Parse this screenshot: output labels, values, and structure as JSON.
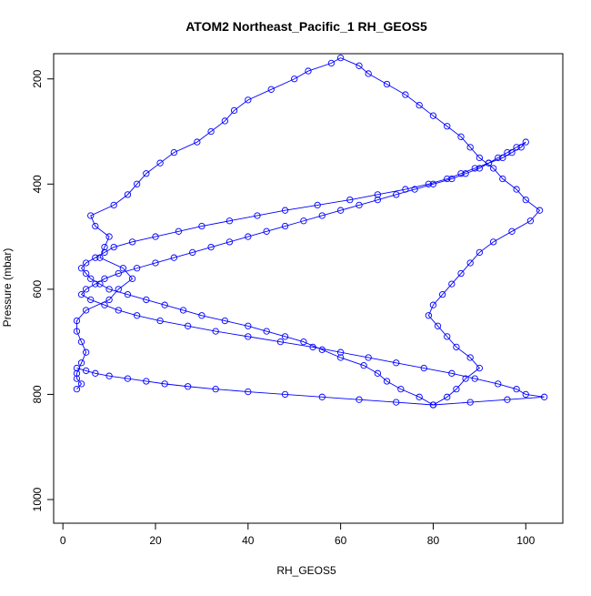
{
  "chart_data": {
    "type": "line",
    "title": "ATOM2 Northeast_Pacific_1 RH_GEOS5",
    "xlabel": "RH_GEOS5",
    "ylabel": "Pressure (mbar)",
    "xlim": [
      -2,
      108
    ],
    "ylim": [
      1045,
      152
    ],
    "y_reversed": true,
    "grid": false,
    "legend": "none",
    "marker": "open-circle",
    "series_color": "#0000ff",
    "x_ticks": [
      0,
      20,
      40,
      60,
      80,
      100
    ],
    "y_ticks": [
      200,
      400,
      600,
      800,
      1000
    ],
    "series": [
      {
        "x": [
          3,
          4,
          3,
          3,
          4,
          5,
          4,
          3,
          3,
          5,
          10,
          12,
          15,
          13,
          8,
          9,
          10,
          7,
          6,
          11,
          14,
          16,
          18,
          21,
          24,
          29,
          32,
          35,
          37,
          40,
          45,
          50,
          53,
          58,
          60,
          64,
          66,
          70,
          74,
          77,
          80,
          83,
          86,
          88,
          90,
          93,
          95,
          98,
          100,
          103,
          101,
          97,
          93,
          90,
          88,
          86,
          84,
          82,
          80,
          79,
          81,
          83,
          85,
          88,
          90,
          87,
          85,
          83,
          80,
          77,
          73,
          70,
          68,
          65,
          60,
          56,
          52,
          48,
          44,
          40,
          35,
          30,
          26,
          22,
          18,
          14,
          10,
          8,
          6,
          5,
          4,
          5,
          7,
          9,
          11,
          15,
          20,
          25,
          30,
          36,
          42,
          48,
          55,
          62,
          68,
          74,
          79,
          83,
          86,
          89,
          92,
          95,
          97,
          99,
          100,
          98,
          96,
          94,
          92,
          90,
          87,
          84,
          80,
          76,
          72,
          68,
          64,
          60,
          56,
          52,
          48,
          44,
          40,
          36,
          32,
          28,
          24,
          20,
          16,
          12,
          9,
          7,
          5,
          4,
          6,
          9,
          12,
          16,
          21,
          27,
          33,
          40,
          47,
          54,
          60,
          66,
          72,
          78,
          84,
          89,
          94,
          98,
          100,
          104,
          96,
          88,
          80,
          72,
          64,
          56,
          48,
          40,
          33,
          27,
          22,
          18,
          14,
          10,
          7,
          5,
          3
        ],
        "y": [
          790,
          780,
          770,
          760,
          740,
          720,
          700,
          680,
          660,
          640,
          620,
          600,
          580,
          560,
          540,
          520,
          500,
          480,
          460,
          440,
          420,
          400,
          380,
          360,
          340,
          320,
          300,
          280,
          260,
          240,
          220,
          200,
          185,
          170,
          160,
          175,
          190,
          210,
          230,
          250,
          270,
          290,
          310,
          330,
          350,
          370,
          390,
          410,
          430,
          450,
          470,
          490,
          510,
          530,
          550,
          570,
          590,
          610,
          630,
          650,
          670,
          690,
          710,
          730,
          750,
          770,
          790,
          805,
          820,
          805,
          790,
          775,
          760,
          745,
          730,
          715,
          700,
          690,
          680,
          670,
          660,
          650,
          640,
          630,
          620,
          610,
          600,
          590,
          580,
          570,
          560,
          550,
          540,
          530,
          520,
          510,
          500,
          490,
          480,
          470,
          460,
          450,
          440,
          430,
          420,
          410,
          400,
          390,
          380,
          370,
          360,
          350,
          340,
          330,
          320,
          330,
          340,
          350,
          360,
          370,
          380,
          390,
          400,
          410,
          420,
          430,
          440,
          450,
          460,
          470,
          480,
          490,
          500,
          510,
          520,
          530,
          540,
          550,
          560,
          570,
          580,
          590,
          600,
          610,
          620,
          630,
          640,
          650,
          660,
          670,
          680,
          690,
          700,
          710,
          720,
          730,
          740,
          750,
          760,
          770,
          780,
          790,
          800,
          805,
          810,
          815,
          820,
          815,
          810,
          805,
          800,
          795,
          790,
          785,
          780,
          775,
          770,
          765,
          760,
          755,
          750
        ]
      }
    ]
  }
}
